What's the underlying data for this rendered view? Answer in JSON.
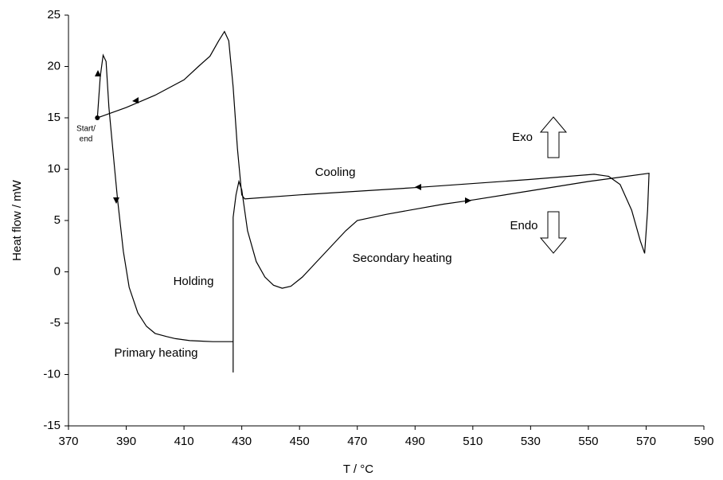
{
  "chart_data": {
    "type": "line",
    "x_label": "T / °C",
    "y_label": "Heat flow  / mW",
    "xlim": [
      370,
      590
    ],
    "xticks": [
      370,
      390,
      410,
      430,
      450,
      470,
      490,
      510,
      530,
      550,
      570,
      590
    ],
    "ylim": [
      -15,
      25
    ],
    "yticks": [
      -15,
      -10,
      -5,
      0,
      5,
      10,
      15,
      20,
      25
    ],
    "grid": false,
    "annotations": [
      "Start/",
      "end",
      "Primary heating",
      "Holding",
      "Secondary heating",
      "Cooling",
      "Exo",
      "Endo"
    ],
    "series": [
      {
        "color": "#000000",
        "x": [
          380,
          381,
          382,
          383,
          384,
          386,
          387,
          389,
          391,
          394,
          397,
          400,
          404,
          407,
          412,
          420,
          427,
          427,
          427,
          428,
          429,
          430,
          432,
          435,
          438,
          441,
          444,
          447,
          451,
          456,
          462,
          466,
          470,
          480,
          490,
          500,
          510,
          530,
          550,
          571,
          570.5,
          569.5,
          568,
          565,
          561,
          557,
          552,
          530,
          490,
          450,
          431,
          430,
          428.5,
          427,
          425.5,
          424,
          422,
          419,
          415,
          410,
          400,
          390,
          380
        ],
        "values": [
          15,
          19,
          21.1,
          20.5,
          16,
          10,
          7,
          2,
          -1.5,
          -4,
          -5.3,
          -6,
          -6.3,
          -6.5,
          -6.7,
          -6.8,
          -6.8,
          -9.8,
          5.3,
          7.5,
          8.8,
          8,
          4,
          1,
          -0.5,
          -1.3,
          -1.6,
          -1.4,
          -0.5,
          1,
          2.8,
          4,
          5,
          5.6,
          6.1,
          6.6,
          7,
          7.9,
          8.8,
          9.6,
          6,
          1.8,
          3,
          6,
          8.5,
          9.3,
          9.5,
          9,
          8.2,
          7.5,
          7.1,
          7.5,
          12,
          18,
          22.5,
          23.4,
          22.5,
          21,
          20,
          18.7,
          17.2,
          16,
          15
        ]
      }
    ]
  }
}
